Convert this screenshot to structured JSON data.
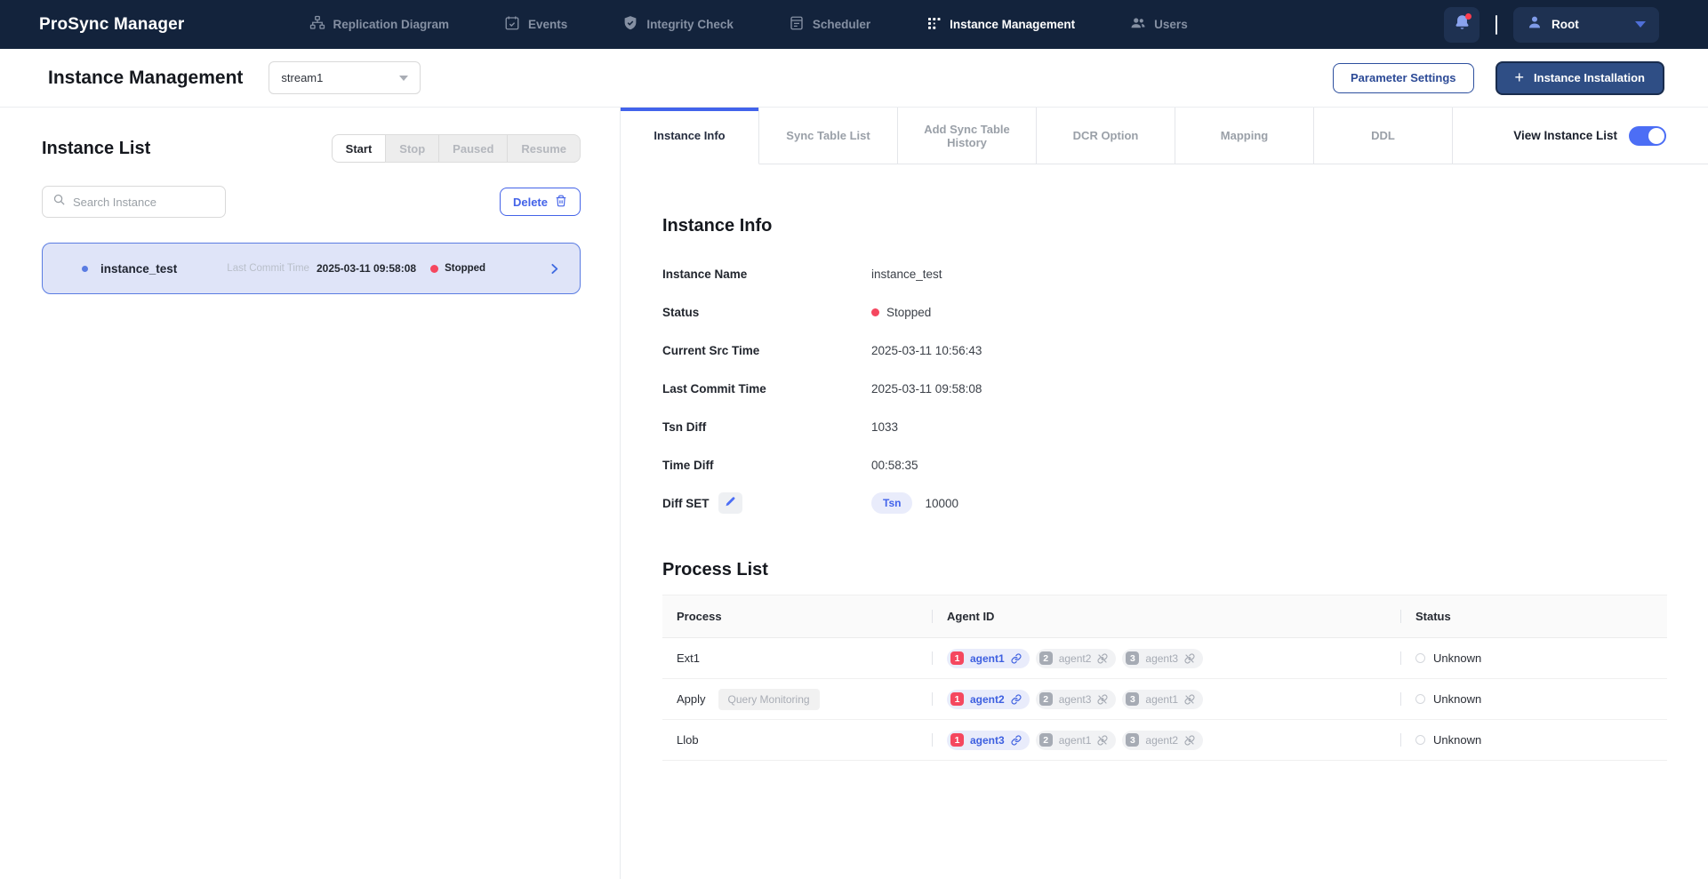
{
  "brand": {
    "title": "ProSync Manager"
  },
  "nav": {
    "items": [
      {
        "label": "Replication Diagram",
        "icon": "hierarchy-icon",
        "active": false
      },
      {
        "label": "Events",
        "icon": "calendar-check-icon",
        "active": false
      },
      {
        "label": "Integrity Check",
        "icon": "shield-check-icon",
        "active": false
      },
      {
        "label": "Scheduler",
        "icon": "calendar-lines-icon",
        "active": false
      },
      {
        "label": "Instance Management",
        "icon": "grid-dots-icon",
        "active": true
      },
      {
        "label": "Users",
        "icon": "users-icon",
        "active": false
      }
    ]
  },
  "topbar": {
    "user": "Root"
  },
  "header": {
    "title": "Instance Management",
    "stream_selected": "stream1",
    "parameter_settings_label": "Parameter Settings",
    "instance_installation_label": "Instance Installation",
    "plus_glyph": "+"
  },
  "instance_list": {
    "heading": "Instance List",
    "actions": [
      "Start",
      "Stop",
      "Paused",
      "Resume"
    ],
    "search_placeholder": "Search Instance",
    "delete_label": "Delete",
    "instance": {
      "name": "instance_test",
      "last_commit_label": "Last Commit Time",
      "last_commit_time": "2025-03-11 09:58:08",
      "status": "Stopped"
    }
  },
  "tabs": {
    "items": [
      "Instance Info",
      "Sync Table List",
      "Add Sync Table History",
      "DCR Option",
      "Mapping",
      "DDL"
    ],
    "active_index": 0,
    "view_instance_list_label": "View Instance List",
    "view_instance_list_on": true
  },
  "instance_info": {
    "heading": "Instance Info",
    "fields": [
      {
        "label": "Instance Name",
        "value": "instance_test"
      },
      {
        "label": "Status",
        "value": "Stopped"
      },
      {
        "label": "Current Src Time",
        "value": "2025-03-11 10:56:43"
      },
      {
        "label": "Last Commit Time",
        "value": "2025-03-11 09:58:08"
      },
      {
        "label": "Tsn Diff",
        "value": "1033"
      },
      {
        "label": "Time Diff",
        "value": "00:58:35"
      },
      {
        "label": "Diff SET",
        "badge": "Tsn",
        "value": "10000"
      }
    ]
  },
  "process_list": {
    "heading": "Process List",
    "columns": [
      "Process",
      "Agent ID",
      "Status"
    ],
    "rows": [
      {
        "process": "Ext1",
        "extra_button": null,
        "status": "Unknown",
        "agents": [
          {
            "num": "1",
            "name": "agent1",
            "linked": true
          },
          {
            "num": "2",
            "name": "agent2",
            "linked": false
          },
          {
            "num": "3",
            "name": "agent3",
            "linked": false
          }
        ]
      },
      {
        "process": "Apply",
        "extra_button": "Query Monitoring",
        "status": "Unknown",
        "agents": [
          {
            "num": "1",
            "name": "agent2",
            "linked": true
          },
          {
            "num": "2",
            "name": "agent3",
            "linked": false
          },
          {
            "num": "3",
            "name": "agent1",
            "linked": false
          }
        ]
      },
      {
        "process": "Llob",
        "extra_button": null,
        "status": "Unknown",
        "agents": [
          {
            "num": "1",
            "name": "agent3",
            "linked": true
          },
          {
            "num": "2",
            "name": "agent1",
            "linked": false
          },
          {
            "num": "3",
            "name": "agent2",
            "linked": false
          }
        ]
      }
    ]
  },
  "colors": {
    "navbar_bg": "#13233c",
    "accent_blue": "#4263eb",
    "status_red": "#f5475f",
    "instance_row_bg": "#dfe4f8",
    "instance_row_border": "#5a7ce2",
    "dark_button_bg": "#2f4e85"
  }
}
